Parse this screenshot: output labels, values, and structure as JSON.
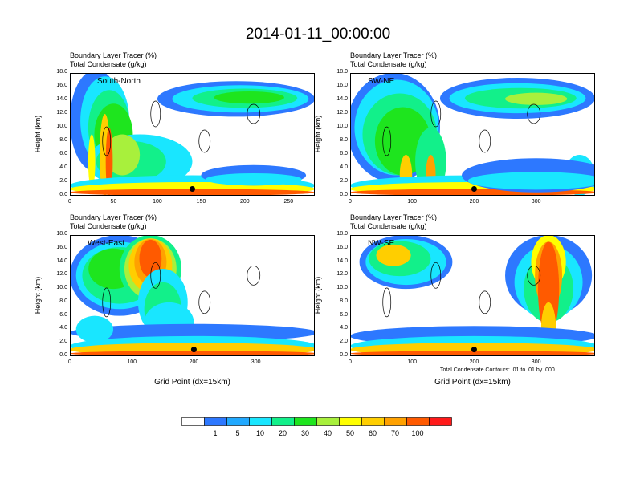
{
  "title": "2014-01-11_00:00:00",
  "contour_note": "Total Condensate Contours: .01 to .01 by .000",
  "colorbar": {
    "colors": [
      "#ffffff",
      "#2d78ff",
      "#21a9ff",
      "#19e6ff",
      "#12f08a",
      "#1ee51e",
      "#a8f03c",
      "#ffff00",
      "#ffce00",
      "#ffa100",
      "#ff5a00",
      "#ff1a1a"
    ],
    "labels": [
      "1",
      "5",
      "10",
      "20",
      "30",
      "40",
      "50",
      "60",
      "70",
      "100"
    ]
  },
  "chart_data": [
    {
      "type": "heatmap",
      "panel_label": "South-North",
      "var1": "Boundary Layer Tracer   (%)",
      "var2": "Total Condensate   (g/kg)",
      "ylabel": "Height (km)",
      "xlabel": "",
      "xlim": [
        0,
        280
      ],
      "ylim": [
        0,
        18
      ],
      "yticks": [
        "0.0",
        "2.0",
        "4.0",
        "6.0",
        "8.0",
        "10.0",
        "12.0",
        "14.0",
        "16.0",
        "18.0"
      ],
      "xticks": [
        {
          "v": 0,
          "t": "0"
        },
        {
          "v": 50,
          "t": "50"
        },
        {
          "v": 100,
          "t": "100"
        },
        {
          "v": 150,
          "t": "150"
        },
        {
          "v": 200,
          "t": "200"
        },
        {
          "v": 250,
          "t": "250"
        }
      ],
      "marker": {
        "x": 140,
        "y": 1.0
      }
    },
    {
      "type": "heatmap",
      "panel_label": "SW-NE",
      "var1": "Boundary Layer Tracer   (%)",
      "var2": "Total Condensate   (g/kg)",
      "ylabel": "Height (km)",
      "xlabel": "",
      "xlim": [
        0,
        395
      ],
      "ylim": [
        0,
        18
      ],
      "yticks": [
        "0.0",
        "2.0",
        "4.0",
        "6.0",
        "8.0",
        "10.0",
        "12.0",
        "14.0",
        "16.0",
        "18.0"
      ],
      "xticks": [
        {
          "v": 0,
          "t": "0"
        },
        {
          "v": 100,
          "t": "100"
        },
        {
          "v": 200,
          "t": "200"
        },
        {
          "v": 300,
          "t": "300"
        }
      ],
      "marker": {
        "x": 200,
        "y": 1.0
      }
    },
    {
      "type": "heatmap",
      "panel_label": "West-East",
      "var1": "Boundary Layer Tracer   (%)",
      "var2": "Total Condensate   (g/kg)",
      "ylabel": "Height (km)",
      "xlabel": "Grid Point (dx=15km)",
      "xlim": [
        0,
        395
      ],
      "ylim": [
        0,
        18
      ],
      "yticks": [
        "0.0",
        "2.0",
        "4.0",
        "6.0",
        "8.0",
        "10.0",
        "12.0",
        "14.0",
        "16.0",
        "18.0"
      ],
      "xticks": [
        {
          "v": 0,
          "t": "0"
        },
        {
          "v": 100,
          "t": "100"
        },
        {
          "v": 200,
          "t": "200"
        },
        {
          "v": 300,
          "t": "300"
        }
      ],
      "marker": {
        "x": 200,
        "y": 1.0
      }
    },
    {
      "type": "heatmap",
      "panel_label": "NW-SE",
      "var1": "Boundary Layer Tracer   (%)",
      "var2": "Total Condensate   (g/kg)",
      "ylabel": "Height (km)",
      "xlabel": "Grid Point (dx=15km)",
      "xlim": [
        0,
        395
      ],
      "ylim": [
        0,
        18
      ],
      "yticks": [
        "0.0",
        "2.0",
        "4.0",
        "6.0",
        "8.0",
        "10.0",
        "12.0",
        "14.0",
        "16.0",
        "18.0"
      ],
      "xticks": [
        {
          "v": 0,
          "t": "0"
        },
        {
          "v": 100,
          "t": "100"
        },
        {
          "v": 200,
          "t": "200"
        },
        {
          "v": 300,
          "t": "300"
        }
      ],
      "marker": {
        "x": 200,
        "y": 1.0
      }
    }
  ]
}
